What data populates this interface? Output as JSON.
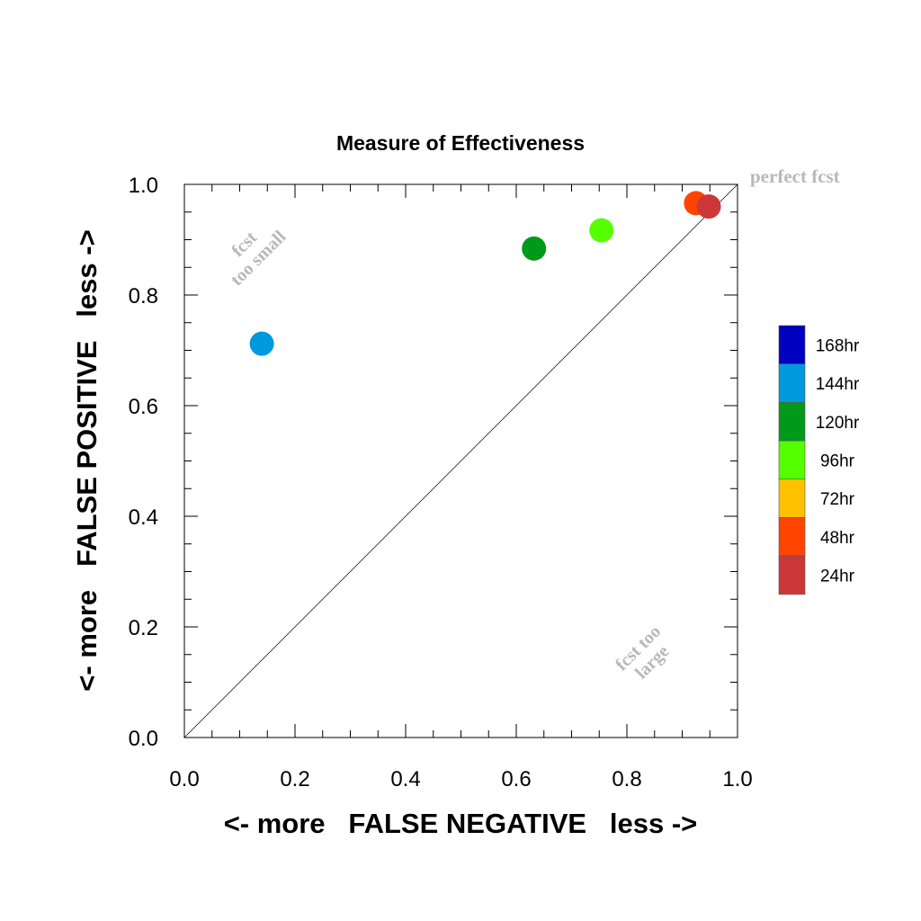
{
  "chart_data": {
    "type": "scatter",
    "title": "Measure of Effectiveness",
    "xlabel": "<- more   FALSE NEGATIVE   less ->",
    "ylabel": "<- more   FALSE POSITIVE   less ->",
    "xlim": [
      0.0,
      1.0
    ],
    "ylim": [
      0.0,
      1.0
    ],
    "xticks": [
      "0.0",
      "0.2",
      "0.4",
      "0.6",
      "0.8",
      "1.0"
    ],
    "yticks": [
      "0.0",
      "0.2",
      "0.4",
      "0.6",
      "0.8",
      "1.0"
    ],
    "grid": false,
    "diagonal_line": true,
    "annotations": {
      "perfect": "perfect fcst",
      "small_line1": "fcst",
      "small_line2": "too small",
      "large_line1": "fcst too",
      "large_line2": "large"
    },
    "legend": [
      {
        "label": "168hr",
        "color": "#0000c0"
      },
      {
        "label": "144hr",
        "color": "#0099dd"
      },
      {
        "label": "120hr",
        "color": "#009a1a"
      },
      {
        "label": "96hr",
        "color": "#55ff00"
      },
      {
        "label": "72hr",
        "color": "#ffc000"
      },
      {
        "label": "48hr",
        "color": "#ff4400"
      },
      {
        "label": "24hr",
        "color": "#cc3838"
      }
    ],
    "points": [
      {
        "lead": "144hr",
        "x": 0.14,
        "y": 0.712,
        "color": "#0099dd"
      },
      {
        "lead": "120hr",
        "x": 0.632,
        "y": 0.884,
        "color": "#009a1a"
      },
      {
        "lead": "96hr",
        "x": 0.754,
        "y": 0.917,
        "color": "#55ff00"
      },
      {
        "lead": "48hr",
        "x": 0.925,
        "y": 0.966,
        "color": "#ff4400"
      },
      {
        "lead": "24hr",
        "x": 0.948,
        "y": 0.96,
        "color": "#cc3838"
      }
    ]
  }
}
